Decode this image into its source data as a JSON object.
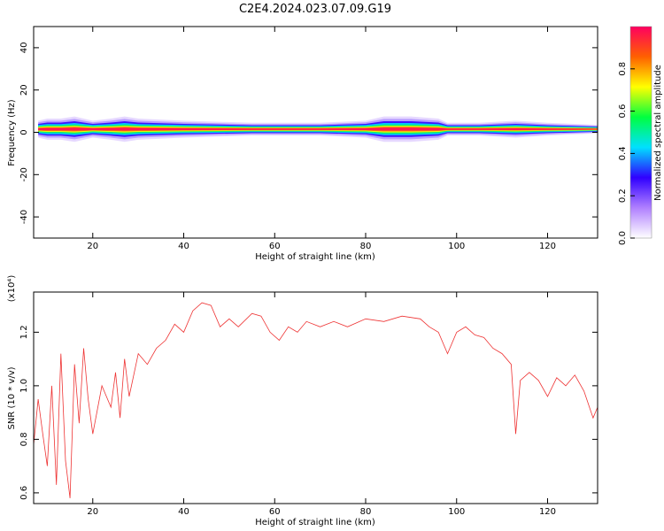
{
  "title": "C2E4.2024.023.07.09.G19",
  "chart_data": [
    {
      "type": "heatmap",
      "xlabel": "Height of straight line (km)",
      "ylabel": "Frequency (Hz)",
      "xlim": [
        7,
        131
      ],
      "ylim": [
        -50,
        50
      ],
      "x_ticks": [
        20,
        40,
        60,
        80,
        100,
        120
      ],
      "y_ticks": [
        -40,
        -20,
        0,
        20,
        40
      ],
      "colorbar": {
        "label": "Normalized spectral amplitude",
        "range": [
          0,
          1
        ],
        "ticks": [
          "0.0",
          "0.2",
          "0.4",
          "0.6",
          "0.8"
        ],
        "colors": [
          "#ffffff",
          "#b080ff",
          "#3000ff",
          "#00e0ff",
          "#00ff40",
          "#ffff00",
          "#ff6000",
          "#ff0060"
        ]
      },
      "band_centre_hz": 1.5,
      "band_halfwidth_hz": [
        [
          8,
          4
        ],
        [
          10,
          5
        ],
        [
          13,
          5
        ],
        [
          16,
          6
        ],
        [
          20,
          4
        ],
        [
          24,
          5
        ],
        [
          27,
          6
        ],
        [
          30,
          5
        ],
        [
          40,
          4
        ],
        [
          55,
          3
        ],
        [
          70,
          3
        ],
        [
          80,
          4
        ],
        [
          84,
          6
        ],
        [
          90,
          6
        ],
        [
          96,
          5
        ],
        [
          98,
          3
        ],
        [
          105,
          3
        ],
        [
          113,
          4
        ],
        [
          120,
          3
        ],
        [
          131,
          2
        ]
      ]
    },
    {
      "type": "line",
      "xlabel": "Height of straight line (km)",
      "ylabel": "SNR (10 * v/v)",
      "y_multiplier": "(x10⁴)",
      "xlim": [
        7,
        131
      ],
      "ylim": [
        0.56,
        1.35
      ],
      "x_ticks": [
        20,
        40,
        60,
        80,
        100,
        120
      ],
      "y_ticks": [
        0.6,
        0.8,
        1.0,
        1.2
      ],
      "color": "#ee3333",
      "points": [
        [
          7,
          0.78
        ],
        [
          8,
          0.95
        ],
        [
          9,
          0.82
        ],
        [
          10,
          0.7
        ],
        [
          11,
          1.0
        ],
        [
          12,
          0.63
        ],
        [
          13,
          1.12
        ],
        [
          14,
          0.72
        ],
        [
          15,
          0.58
        ],
        [
          16,
          1.08
        ],
        [
          17,
          0.86
        ],
        [
          18,
          1.14
        ],
        [
          19,
          0.95
        ],
        [
          20,
          0.82
        ],
        [
          22,
          1.0
        ],
        [
          24,
          0.92
        ],
        [
          25,
          1.05
        ],
        [
          26,
          0.88
        ],
        [
          27,
          1.1
        ],
        [
          28,
          0.96
        ],
        [
          30,
          1.12
        ],
        [
          32,
          1.08
        ],
        [
          34,
          1.14
        ],
        [
          36,
          1.17
        ],
        [
          38,
          1.23
        ],
        [
          40,
          1.2
        ],
        [
          42,
          1.28
        ],
        [
          44,
          1.31
        ],
        [
          46,
          1.3
        ],
        [
          48,
          1.22
        ],
        [
          50,
          1.25
        ],
        [
          52,
          1.22
        ],
        [
          55,
          1.27
        ],
        [
          57,
          1.26
        ],
        [
          59,
          1.2
        ],
        [
          61,
          1.17
        ],
        [
          63,
          1.22
        ],
        [
          65,
          1.2
        ],
        [
          67,
          1.24
        ],
        [
          70,
          1.22
        ],
        [
          73,
          1.24
        ],
        [
          76,
          1.22
        ],
        [
          80,
          1.25
        ],
        [
          84,
          1.24
        ],
        [
          88,
          1.26
        ],
        [
          92,
          1.25
        ],
        [
          94,
          1.22
        ],
        [
          96,
          1.2
        ],
        [
          98,
          1.12
        ],
        [
          100,
          1.2
        ],
        [
          102,
          1.22
        ],
        [
          104,
          1.19
        ],
        [
          106,
          1.18
        ],
        [
          108,
          1.14
        ],
        [
          110,
          1.12
        ],
        [
          112,
          1.08
        ],
        [
          113,
          0.82
        ],
        [
          114,
          1.02
        ],
        [
          116,
          1.05
        ],
        [
          118,
          1.02
        ],
        [
          120,
          0.96
        ],
        [
          122,
          1.03
        ],
        [
          124,
          1.0
        ],
        [
          126,
          1.04
        ],
        [
          128,
          0.98
        ],
        [
          130,
          0.88
        ],
        [
          131,
          0.92
        ]
      ]
    }
  ]
}
